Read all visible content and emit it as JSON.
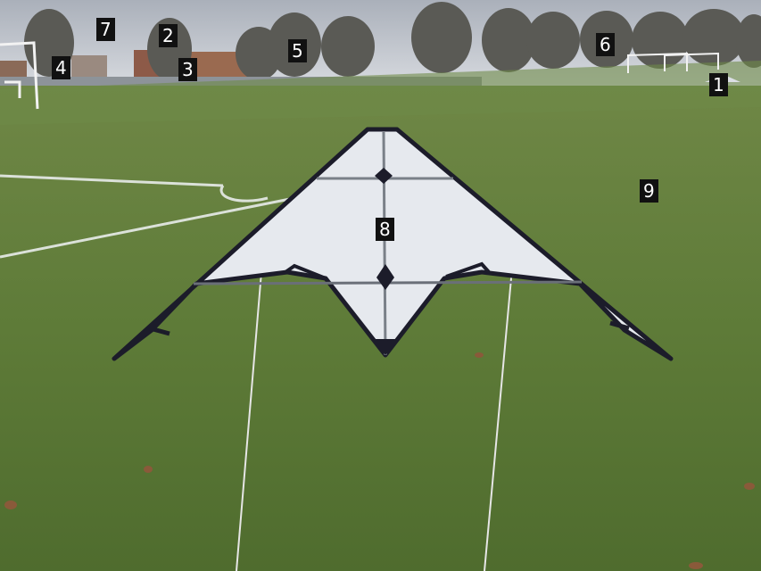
{
  "image": {
    "subject": "stunt kite on grass playing field",
    "colors": {
      "sky": "#c9ccd2",
      "grass": "#5f7a3a",
      "kite_sail": "#e6e9ee",
      "kite_edge": "#1c1c2a"
    }
  },
  "markers": [
    {
      "id": "1",
      "label": "1"
    },
    {
      "id": "2",
      "label": "2"
    },
    {
      "id": "3",
      "label": "3"
    },
    {
      "id": "4",
      "label": "4"
    },
    {
      "id": "5",
      "label": "5"
    },
    {
      "id": "6",
      "label": "6"
    },
    {
      "id": "7",
      "label": "7"
    },
    {
      "id": "8",
      "label": "8"
    },
    {
      "id": "9",
      "label": "9"
    }
  ]
}
